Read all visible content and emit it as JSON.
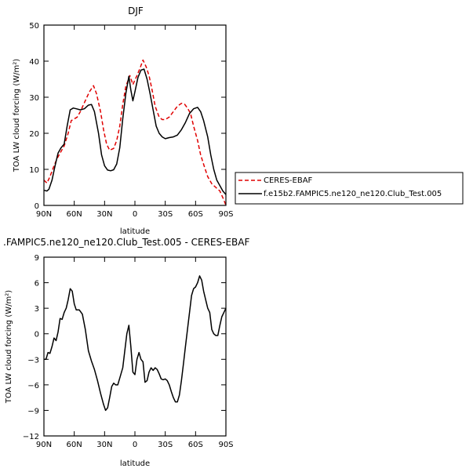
{
  "chart_data": [
    {
      "type": "line",
      "title": "DJF",
      "xlabel": "latitude",
      "ylabel": "TOA LW cloud forcing (W/m²)",
      "ylim": [
        0,
        50
      ],
      "yticks": [
        0,
        10,
        20,
        30,
        40,
        50
      ],
      "xlim": [
        90,
        -90
      ],
      "xticks": [
        90,
        60,
        30,
        0,
        -30,
        -60,
        -90
      ],
      "xtick_labels": [
        "90N",
        "60N",
        "30N",
        "0",
        "30S",
        "60S",
        "90S"
      ],
      "legend": {
        "placement": "right",
        "entries": [
          "CERES-EBAF",
          "f.e15b2.FAMPIC5.ne120_ne120.Club_Test.005"
        ]
      },
      "series": [
        {
          "name": "CERES-EBAF",
          "color": "#e00000",
          "style": "dashed",
          "points": [
            [
              90,
              7
            ],
            [
              87,
              6.2
            ],
            [
              84,
              8
            ],
            [
              80,
              11
            ],
            [
              77,
              13
            ],
            [
              74,
              14.5
            ],
            [
              70,
              16.5
            ],
            [
              66,
              20
            ],
            [
              63,
              23.5
            ],
            [
              60,
              24
            ],
            [
              57,
              24.5
            ],
            [
              54,
              26
            ],
            [
              50,
              28.5
            ],
            [
              45,
              31.5
            ],
            [
              41,
              33.2
            ],
            [
              38,
              31
            ],
            [
              34,
              26
            ],
            [
              31,
              21
            ],
            [
              28,
              17
            ],
            [
              25,
              15.3
            ],
            [
              21,
              15.8
            ],
            [
              18,
              18
            ],
            [
              15,
              22
            ],
            [
              12,
              28
            ],
            [
              9,
              33
            ],
            [
              5,
              36
            ],
            [
              2,
              33.5
            ],
            [
              -2,
              36
            ],
            [
              -5,
              38
            ],
            [
              -8,
              40.3
            ],
            [
              -11,
              38.5
            ],
            [
              -14,
              36
            ],
            [
              -17,
              32
            ],
            [
              -20,
              27.5
            ],
            [
              -24,
              24.5
            ],
            [
              -27,
              23.8
            ],
            [
              -30,
              23.8
            ],
            [
              -34,
              24.5
            ],
            [
              -38,
              26
            ],
            [
              -42,
              27.5
            ],
            [
              -46,
              28.3
            ],
            [
              -49,
              28.1
            ],
            [
              -52,
              27
            ],
            [
              -55,
              25.5
            ],
            [
              -58,
              22
            ],
            [
              -62,
              18
            ],
            [
              -65,
              14
            ],
            [
              -69,
              10.5
            ],
            [
              -72,
              8
            ],
            [
              -76,
              6
            ],
            [
              -80,
              5
            ],
            [
              -84,
              4
            ],
            [
              -88,
              1.5
            ],
            [
              -90,
              0
            ]
          ]
        },
        {
          "name": "f.e15b2.FAMPIC5.ne120_ne120.Club_Test.005",
          "color": "#000000",
          "style": "solid",
          "points": [
            [
              90,
              4.2
            ],
            [
              87,
              4
            ],
            [
              85,
              4.5
            ],
            [
              82,
              7
            ],
            [
              79,
              11
            ],
            [
              76,
              14.5
            ],
            [
              73,
              16
            ],
            [
              70,
              17
            ],
            [
              67,
              22
            ],
            [
              64,
              26.5
            ],
            [
              61,
              27
            ],
            [
              58,
              26.8
            ],
            [
              54,
              26.5
            ],
            [
              50,
              26.8
            ],
            [
              46,
              27.8
            ],
            [
              43,
              28
            ],
            [
              40,
              26
            ],
            [
              36,
              20
            ],
            [
              33,
              14
            ],
            [
              30,
              11
            ],
            [
              27,
              9.8
            ],
            [
              24,
              9.6
            ],
            [
              21,
              9.9
            ],
            [
              18,
              11.5
            ],
            [
              15,
              16
            ],
            [
              12,
              24
            ],
            [
              9,
              31
            ],
            [
              6,
              35.8
            ],
            [
              4,
              32
            ],
            [
              2,
              29
            ],
            [
              0,
              31.5
            ],
            [
              -3,
              35.5
            ],
            [
              -6,
              37.5
            ],
            [
              -9,
              37.8
            ],
            [
              -12,
              35
            ],
            [
              -15,
              31
            ],
            [
              -18,
              26.5
            ],
            [
              -21,
              22
            ],
            [
              -24,
              20
            ],
            [
              -27,
              19
            ],
            [
              -30,
              18.5
            ],
            [
              -34,
              18.8
            ],
            [
              -38,
              19
            ],
            [
              -42,
              19.5
            ],
            [
              -46,
              21
            ],
            [
              -50,
              23
            ],
            [
              -54,
              25.5
            ],
            [
              -58,
              26.8
            ],
            [
              -62,
              27.2
            ],
            [
              -65,
              26
            ],
            [
              -68,
              23.5
            ],
            [
              -72,
              19
            ],
            [
              -75,
              14
            ],
            [
              -78,
              10
            ],
            [
              -81,
              7
            ],
            [
              -84,
              5.5
            ],
            [
              -87,
              4
            ],
            [
              -90,
              3
            ]
          ]
        }
      ]
    },
    {
      "type": "line",
      "title": ".FAMPIC5.ne120_ne120.Club_Test.005 - CERES-EBAF",
      "xlabel": "latitude",
      "ylabel": "TOA LW cloud forcing (W/m²)",
      "ylim": [
        -12,
        9
      ],
      "yticks": [
        -12,
        -9,
        -6,
        -3,
        0,
        3,
        6,
        9
      ],
      "xlim": [
        90,
        -90
      ],
      "xticks": [
        90,
        60,
        30,
        0,
        -30,
        -60,
        -90
      ],
      "xtick_labels": [
        "90N",
        "60N",
        "30N",
        "0",
        "30S",
        "60S",
        "90S"
      ],
      "series": [
        {
          "color": "#000000",
          "style": "solid",
          "points": [
            [
              90,
              -3
            ],
            [
              88,
              -3
            ],
            [
              86,
              -2.2
            ],
            [
              84,
              -2.3
            ],
            [
              82,
              -1.5
            ],
            [
              80,
              -0.5
            ],
            [
              78,
              -0.8
            ],
            [
              76,
              0.2
            ],
            [
              74,
              1.8
            ],
            [
              72,
              1.7
            ],
            [
              70,
              2.5
            ],
            [
              68,
              3
            ],
            [
              66,
              4
            ],
            [
              64,
              5.3
            ],
            [
              62,
              5
            ],
            [
              60,
              3.5
            ],
            [
              58,
              2.8
            ],
            [
              55,
              2.8
            ],
            [
              52,
              2.3
            ],
            [
              49,
              0.5
            ],
            [
              46,
              -2
            ],
            [
              43,
              -3.2
            ],
            [
              40,
              -4.2
            ],
            [
              37,
              -5.5
            ],
            [
              34,
              -7
            ],
            [
              31,
              -8.3
            ],
            [
              29,
              -9
            ],
            [
              27,
              -8.7
            ],
            [
              25,
              -7.5
            ],
            [
              23,
              -6.2
            ],
            [
              21,
              -5.8
            ],
            [
              19,
              -6
            ],
            [
              17,
              -6
            ],
            [
              15,
              -5.2
            ],
            [
              12,
              -4
            ],
            [
              10,
              -2
            ],
            [
              8,
              0
            ],
            [
              6,
              1
            ],
            [
              4,
              -1.5
            ],
            [
              2,
              -4.5
            ],
            [
              0,
              -4.8
            ],
            [
              -2,
              -3
            ],
            [
              -4,
              -2.2
            ],
            [
              -6,
              -3
            ],
            [
              -8,
              -3.3
            ],
            [
              -10,
              -5.7
            ],
            [
              -12,
              -5.5
            ],
            [
              -14,
              -4.5
            ],
            [
              -16,
              -4
            ],
            [
              -18,
              -4.3
            ],
            [
              -20,
              -4
            ],
            [
              -22,
              -4.2
            ],
            [
              -24,
              -4.7
            ],
            [
              -26,
              -5.3
            ],
            [
              -28,
              -5.4
            ],
            [
              -30,
              -5.3
            ],
            [
              -32,
              -5.5
            ],
            [
              -34,
              -6
            ],
            [
              -36,
              -6.8
            ],
            [
              -38,
              -7.5
            ],
            [
              -40,
              -8
            ],
            [
              -42,
              -8
            ],
            [
              -44,
              -7.2
            ],
            [
              -46,
              -5.5
            ],
            [
              -48,
              -3.5
            ],
            [
              -50,
              -1.5
            ],
            [
              -52,
              0.5
            ],
            [
              -54,
              2.5
            ],
            [
              -56,
              4.5
            ],
            [
              -58,
              5.3
            ],
            [
              -60,
              5.5
            ],
            [
              -62,
              6
            ],
            [
              -64,
              6.8
            ],
            [
              -66,
              6.3
            ],
            [
              -68,
              5
            ],
            [
              -70,
              4
            ],
            [
              -72,
              3
            ],
            [
              -74,
              2.5
            ],
            [
              -76,
              0.5
            ],
            [
              -78,
              0
            ],
            [
              -80,
              -0.2
            ],
            [
              -82,
              -0.2
            ],
            [
              -84,
              1
            ],
            [
              -86,
              2
            ],
            [
              -88,
              2.5
            ],
            [
              -90,
              3
            ]
          ]
        }
      ]
    }
  ]
}
